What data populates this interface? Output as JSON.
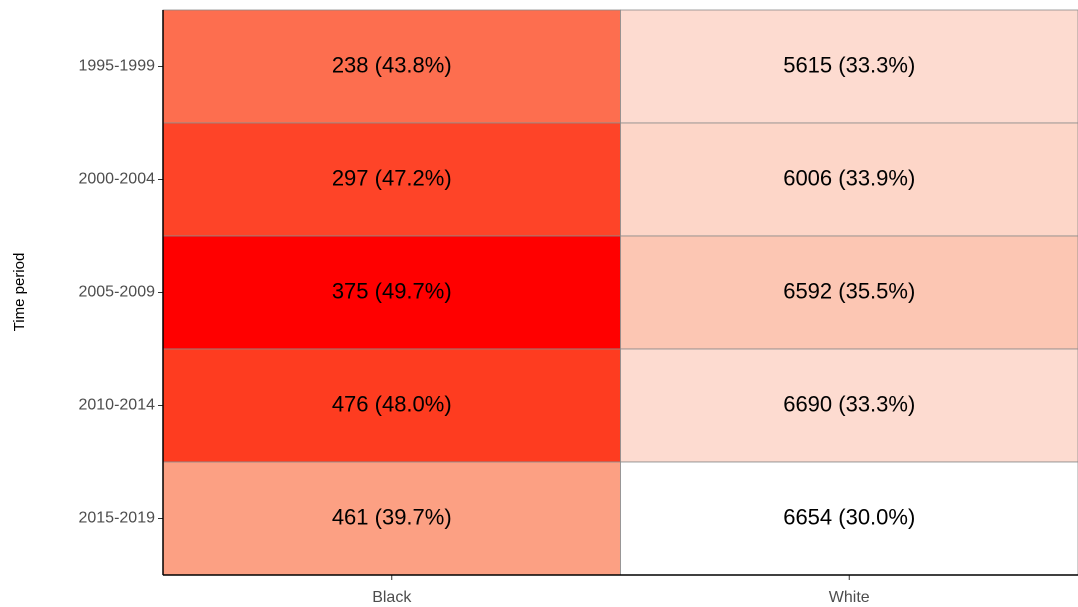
{
  "chart_data": {
    "type": "heatmap",
    "y_label": "Time period",
    "x_categories": [
      "Black",
      "White"
    ],
    "y_categories": [
      "1995-1999",
      "2000-2004",
      "2005-2009",
      "2010-2014",
      "2015-2019"
    ],
    "counts": [
      [
        238,
        5615
      ],
      [
        297,
        6006
      ],
      [
        375,
        6592
      ],
      [
        476,
        6690
      ],
      [
        461,
        6654
      ]
    ],
    "percents": [
      [
        43.8,
        33.3
      ],
      [
        47.2,
        33.9
      ],
      [
        49.7,
        35.5
      ],
      [
        48.0,
        33.3
      ],
      [
        39.7,
        30.0
      ]
    ],
    "value_labels": [
      [
        "238 (43.8%)",
        "5615 (33.3%)"
      ],
      [
        "297 (47.2%)",
        "6006 (33.9%)"
      ],
      [
        "375 (49.7%)",
        "6592 (35.5%)"
      ],
      [
        "476 (48.0%)",
        "6690 (33.3%)"
      ],
      [
        "461 (39.7%)",
        "6654 (30.0%)"
      ]
    ],
    "colors": [
      [
        "#fd6e4f",
        "#fddbd0"
      ],
      [
        "#fe4428",
        "#fdd6c8"
      ],
      [
        "#ff0000",
        "#fcc6b3"
      ],
      [
        "#fe3c20",
        "#fddbd0"
      ],
      [
        "#fca083",
        "#ffffff"
      ]
    ]
  }
}
